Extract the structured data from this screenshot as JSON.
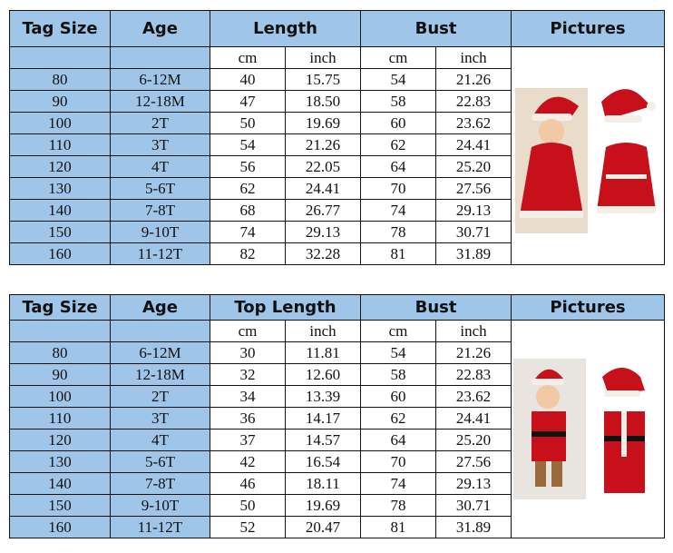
{
  "tables": [
    {
      "headers": [
        "Tag Size",
        "Age",
        "Length",
        "Bust",
        "Pictures"
      ],
      "units": [
        "cm",
        "inch",
        "cm",
        "inch"
      ],
      "rows": [
        [
          "80",
          "6-12M",
          "40",
          "15.75",
          "54",
          "21.26"
        ],
        [
          "90",
          "12-18M",
          "47",
          "18.50",
          "58",
          "22.83"
        ],
        [
          "100",
          "2T",
          "50",
          "19.69",
          "60",
          "23.62"
        ],
        [
          "110",
          "3T",
          "54",
          "21.26",
          "62",
          "24.41"
        ],
        [
          "120",
          "4T",
          "56",
          "22.05",
          "64",
          "25.20"
        ],
        [
          "130",
          "5-6T",
          "62",
          "24.41",
          "70",
          "27.56"
        ],
        [
          "140",
          "7-8T",
          "68",
          "26.77",
          "74",
          "29.13"
        ],
        [
          "150",
          "9-10T",
          "74",
          "29.13",
          "78",
          "30.71"
        ],
        [
          "160",
          "11-12T",
          "82",
          "32.28",
          "81",
          "31.89"
        ]
      ],
      "picture": "santa-dress-photo"
    },
    {
      "headers": [
        "Tag Size",
        "Age",
        "Top Length",
        "Bust",
        "Pictures"
      ],
      "units": [
        "cm",
        "inch",
        "cm",
        "inch"
      ],
      "rows": [
        [
          "80",
          "6-12M",
          "30",
          "11.81",
          "54",
          "21.26"
        ],
        [
          "90",
          "12-18M",
          "32",
          "12.60",
          "58",
          "22.83"
        ],
        [
          "100",
          "2T",
          "34",
          "13.39",
          "60",
          "23.62"
        ],
        [
          "110",
          "3T",
          "36",
          "14.17",
          "62",
          "24.41"
        ],
        [
          "120",
          "4T",
          "37",
          "14.57",
          "64",
          "25.20"
        ],
        [
          "130",
          "5-6T",
          "42",
          "16.54",
          "70",
          "27.56"
        ],
        [
          "140",
          "7-8T",
          "46",
          "18.11",
          "74",
          "29.13"
        ],
        [
          "150",
          "9-10T",
          "50",
          "19.69",
          "78",
          "30.71"
        ],
        [
          "160",
          "11-12T",
          "52",
          "20.47",
          "81",
          "31.89"
        ]
      ],
      "picture": "santa-suit-photo"
    }
  ],
  "colors": {
    "header": "#9fc5e8",
    "costume": "#c8101a"
  }
}
